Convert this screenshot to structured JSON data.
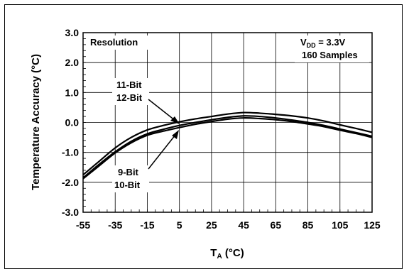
{
  "chart_data": {
    "type": "line",
    "title": "",
    "xlabel_main": "T",
    "xlabel_sub": "A",
    "xlabel_rest": " (°C)",
    "ylabel": "Temperature Accuracy (°C)",
    "xlim": [
      -55,
      125
    ],
    "ylim": [
      -3.0,
      3.0
    ],
    "x_ticks": [
      "-55",
      "-35",
      "-15",
      "5",
      "25",
      "45",
      "65",
      "85",
      "105",
      "125"
    ],
    "y_ticks": [
      "3.0",
      "2.0",
      "1.0",
      "0.0",
      "-1.0",
      "-2.0",
      "-3.0"
    ],
    "grid": true,
    "legend_title": "Resolution",
    "conditions": {
      "vdd_main": "V",
      "vdd_sub": "DD",
      "vdd_rest": " = 3.3V",
      "samples": "160 Samples"
    },
    "annotations": {
      "upper_1": "11-Bit",
      "upper_2": "12-Bit",
      "lower_1": "9-Bit",
      "lower_2": "10-Bit"
    },
    "x": [
      -55,
      -45,
      -35,
      -25,
      -15,
      -5,
      5,
      15,
      25,
      35,
      45,
      55,
      65,
      75,
      85,
      95,
      105,
      115,
      125
    ],
    "series": [
      {
        "values": [
          -1.75,
          -1.3,
          -0.85,
          -0.5,
          -0.25,
          -0.1,
          0.02,
          0.12,
          0.2,
          0.28,
          0.33,
          0.31,
          0.27,
          0.22,
          0.15,
          0.05,
          -0.08,
          -0.2,
          -0.33
        ]
      },
      {
        "values": [
          -1.85,
          -1.4,
          -0.98,
          -0.63,
          -0.38,
          -0.23,
          -0.1,
          0.0,
          0.09,
          0.17,
          0.22,
          0.2,
          0.15,
          0.08,
          0.0,
          -0.1,
          -0.22,
          -0.34,
          -0.46
        ]
      },
      {
        "values": [
          -1.88,
          -1.45,
          -1.02,
          -0.68,
          -0.43,
          -0.29,
          -0.17,
          -0.06,
          0.03,
          0.11,
          0.15,
          0.13,
          0.09,
          0.03,
          -0.05,
          -0.14,
          -0.26,
          -0.37,
          -0.5
        ]
      }
    ]
  }
}
